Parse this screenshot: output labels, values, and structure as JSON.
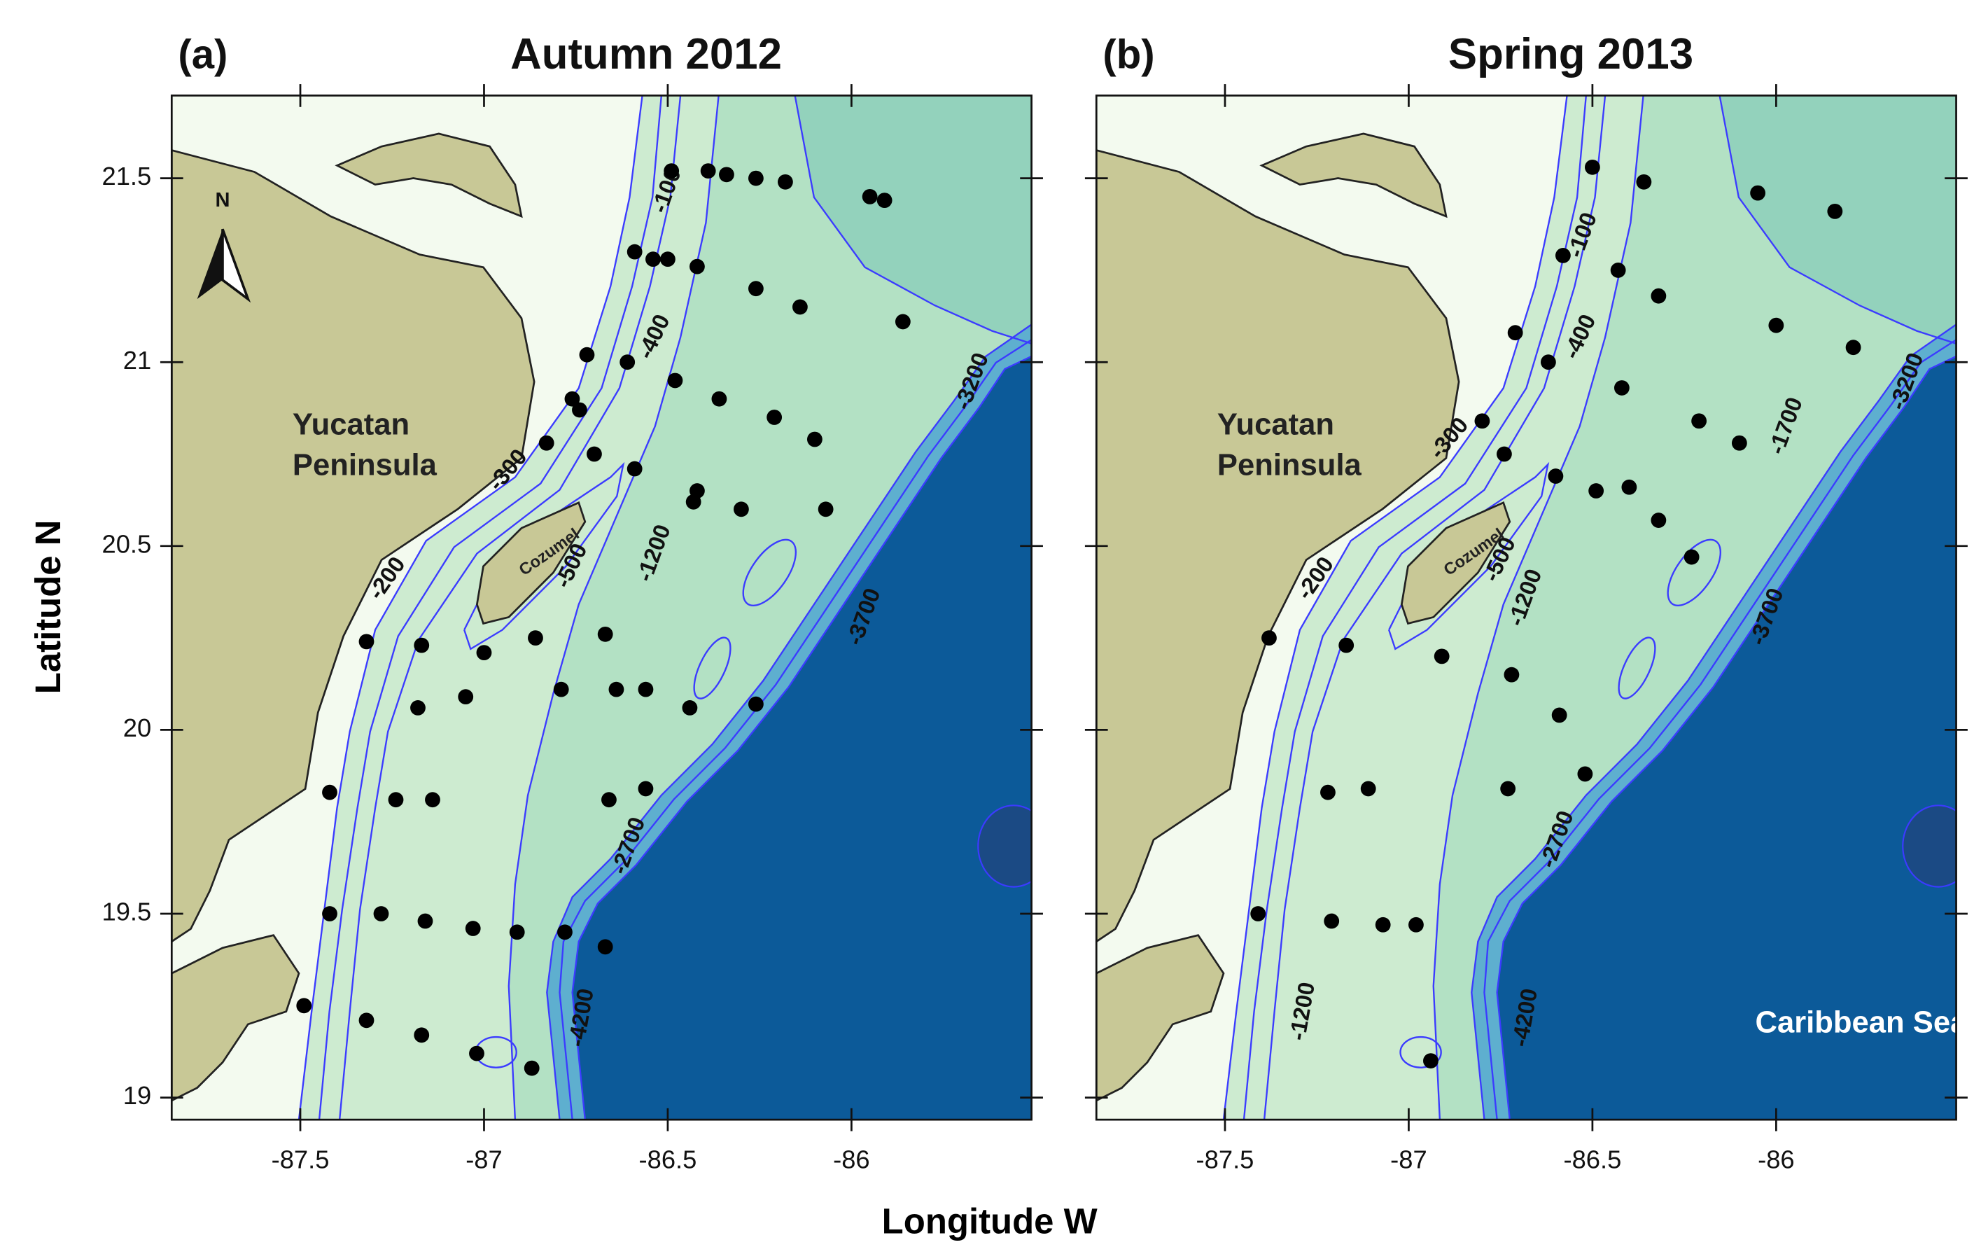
{
  "chart_data": {
    "type": "map",
    "x_label": "Longitude W",
    "y_label": "Latitude N",
    "panels": [
      {
        "label": "(a)",
        "title": "Autumn 2012",
        "xlim": [
          -87.85,
          -85.51
        ],
        "ylim": [
          18.94,
          21.725
        ],
        "xticks": [
          -87.5,
          -87,
          -86.5,
          -86
        ],
        "yticks": [
          19,
          19.5,
          20,
          20.5,
          21,
          21.5
        ],
        "y_tick_labels": true,
        "station_color": "#000000",
        "stations": {
          "lon": [
            -86.49,
            -86.39,
            -86.34,
            -86.26,
            -86.18,
            -85.95,
            -85.91,
            -86.59,
            -86.54,
            -86.5,
            -86.42,
            -86.26,
            -86.14,
            -85.86,
            -86.72,
            -86.61,
            -86.48,
            -86.76,
            -86.74,
            -86.36,
            -86.21,
            -86.83,
            -86.7,
            -86.1,
            -86.59,
            -86.42,
            -86.43,
            -86.3,
            -86.07,
            -87.32,
            -87.17,
            -87.0,
            -86.86,
            -86.67,
            -87.18,
            -87.05,
            -86.79,
            -86.64,
            -86.56,
            -86.44,
            -86.26,
            -87.42,
            -87.24,
            -87.14,
            -86.66,
            -86.56,
            -87.28,
            -87.16,
            -87.03,
            -86.91,
            -86.78,
            -86.67,
            -87.42,
            -87.49,
            -87.32,
            -87.17,
            -87.02,
            -86.87
          ],
          "lat": [
            21.52,
            21.52,
            21.51,
            21.5,
            21.49,
            21.45,
            21.44,
            21.3,
            21.28,
            21.28,
            21.26,
            21.2,
            21.15,
            21.11,
            21.02,
            21.0,
            20.95,
            20.9,
            20.87,
            20.9,
            20.85,
            20.78,
            20.75,
            20.79,
            20.71,
            20.65,
            20.62,
            20.6,
            20.6,
            20.24,
            20.23,
            20.21,
            20.25,
            20.26,
            20.06,
            20.09,
            20.11,
            20.11,
            20.11,
            20.06,
            20.07,
            19.83,
            19.81,
            19.81,
            19.81,
            19.84,
            19.5,
            19.48,
            19.46,
            19.45,
            19.45,
            19.41,
            19.5,
            19.25,
            19.21,
            19.17,
            19.12,
            19.08
          ]
        },
        "contour_labels": [
          "-100",
          "-400",
          "-300",
          "-500",
          "-200",
          "-1200",
          "-2700",
          "-3700",
          "-3200",
          "-4200"
        ],
        "place_labels": [
          [
            "Yucatan",
            "Peninsula"
          ],
          [
            "Cozumel"
          ]
        ],
        "north_arrow": "N"
      },
      {
        "label": "(b)",
        "title": "Spring 2013",
        "xlim": [
          -87.85,
          -85.51
        ],
        "ylim": [
          18.94,
          21.725
        ],
        "xticks": [
          -87.5,
          -87,
          -86.5,
          -86
        ],
        "yticks": [
          19,
          19.5,
          20,
          20.5,
          21,
          21.5
        ],
        "y_tick_labels": false,
        "station_color": "#000000",
        "stations": {
          "lon": [
            -86.5,
            -86.36,
            -86.05,
            -85.84,
            -86.58,
            -86.43,
            -86.32,
            -86.71,
            -86.62,
            -86.0,
            -85.79,
            -86.42,
            -86.8,
            -86.21,
            -86.74,
            -86.1,
            -86.6,
            -86.49,
            -86.4,
            -86.32,
            -86.23,
            -87.38,
            -87.17,
            -86.91,
            -86.72,
            -86.59,
            -86.52,
            -87.22,
            -87.11,
            -86.73,
            -87.41,
            -87.21,
            -87.07,
            -86.98,
            -86.94
          ],
          "lat": [
            21.53,
            21.49,
            21.46,
            21.41,
            21.29,
            21.25,
            21.18,
            21.08,
            21.0,
            21.1,
            21.04,
            20.93,
            20.84,
            20.84,
            20.75,
            20.78,
            20.69,
            20.65,
            20.66,
            20.57,
            20.47,
            20.25,
            20.23,
            20.2,
            20.15,
            20.04,
            19.88,
            19.83,
            19.84,
            19.84,
            19.5,
            19.48,
            19.47,
            19.47,
            19.1
          ]
        },
        "contour_labels": [
          "-100",
          "-400",
          "-300",
          "-500",
          "-200",
          "-1200",
          "-1700",
          "-3200",
          "-3700",
          "-2700",
          "-4200",
          "-1200"
        ],
        "place_labels": [
          [
            "Yucatan",
            "Peninsula"
          ],
          [
            "Cozumel"
          ],
          [
            "Caribbean Sea"
          ]
        ]
      }
    ]
  }
}
